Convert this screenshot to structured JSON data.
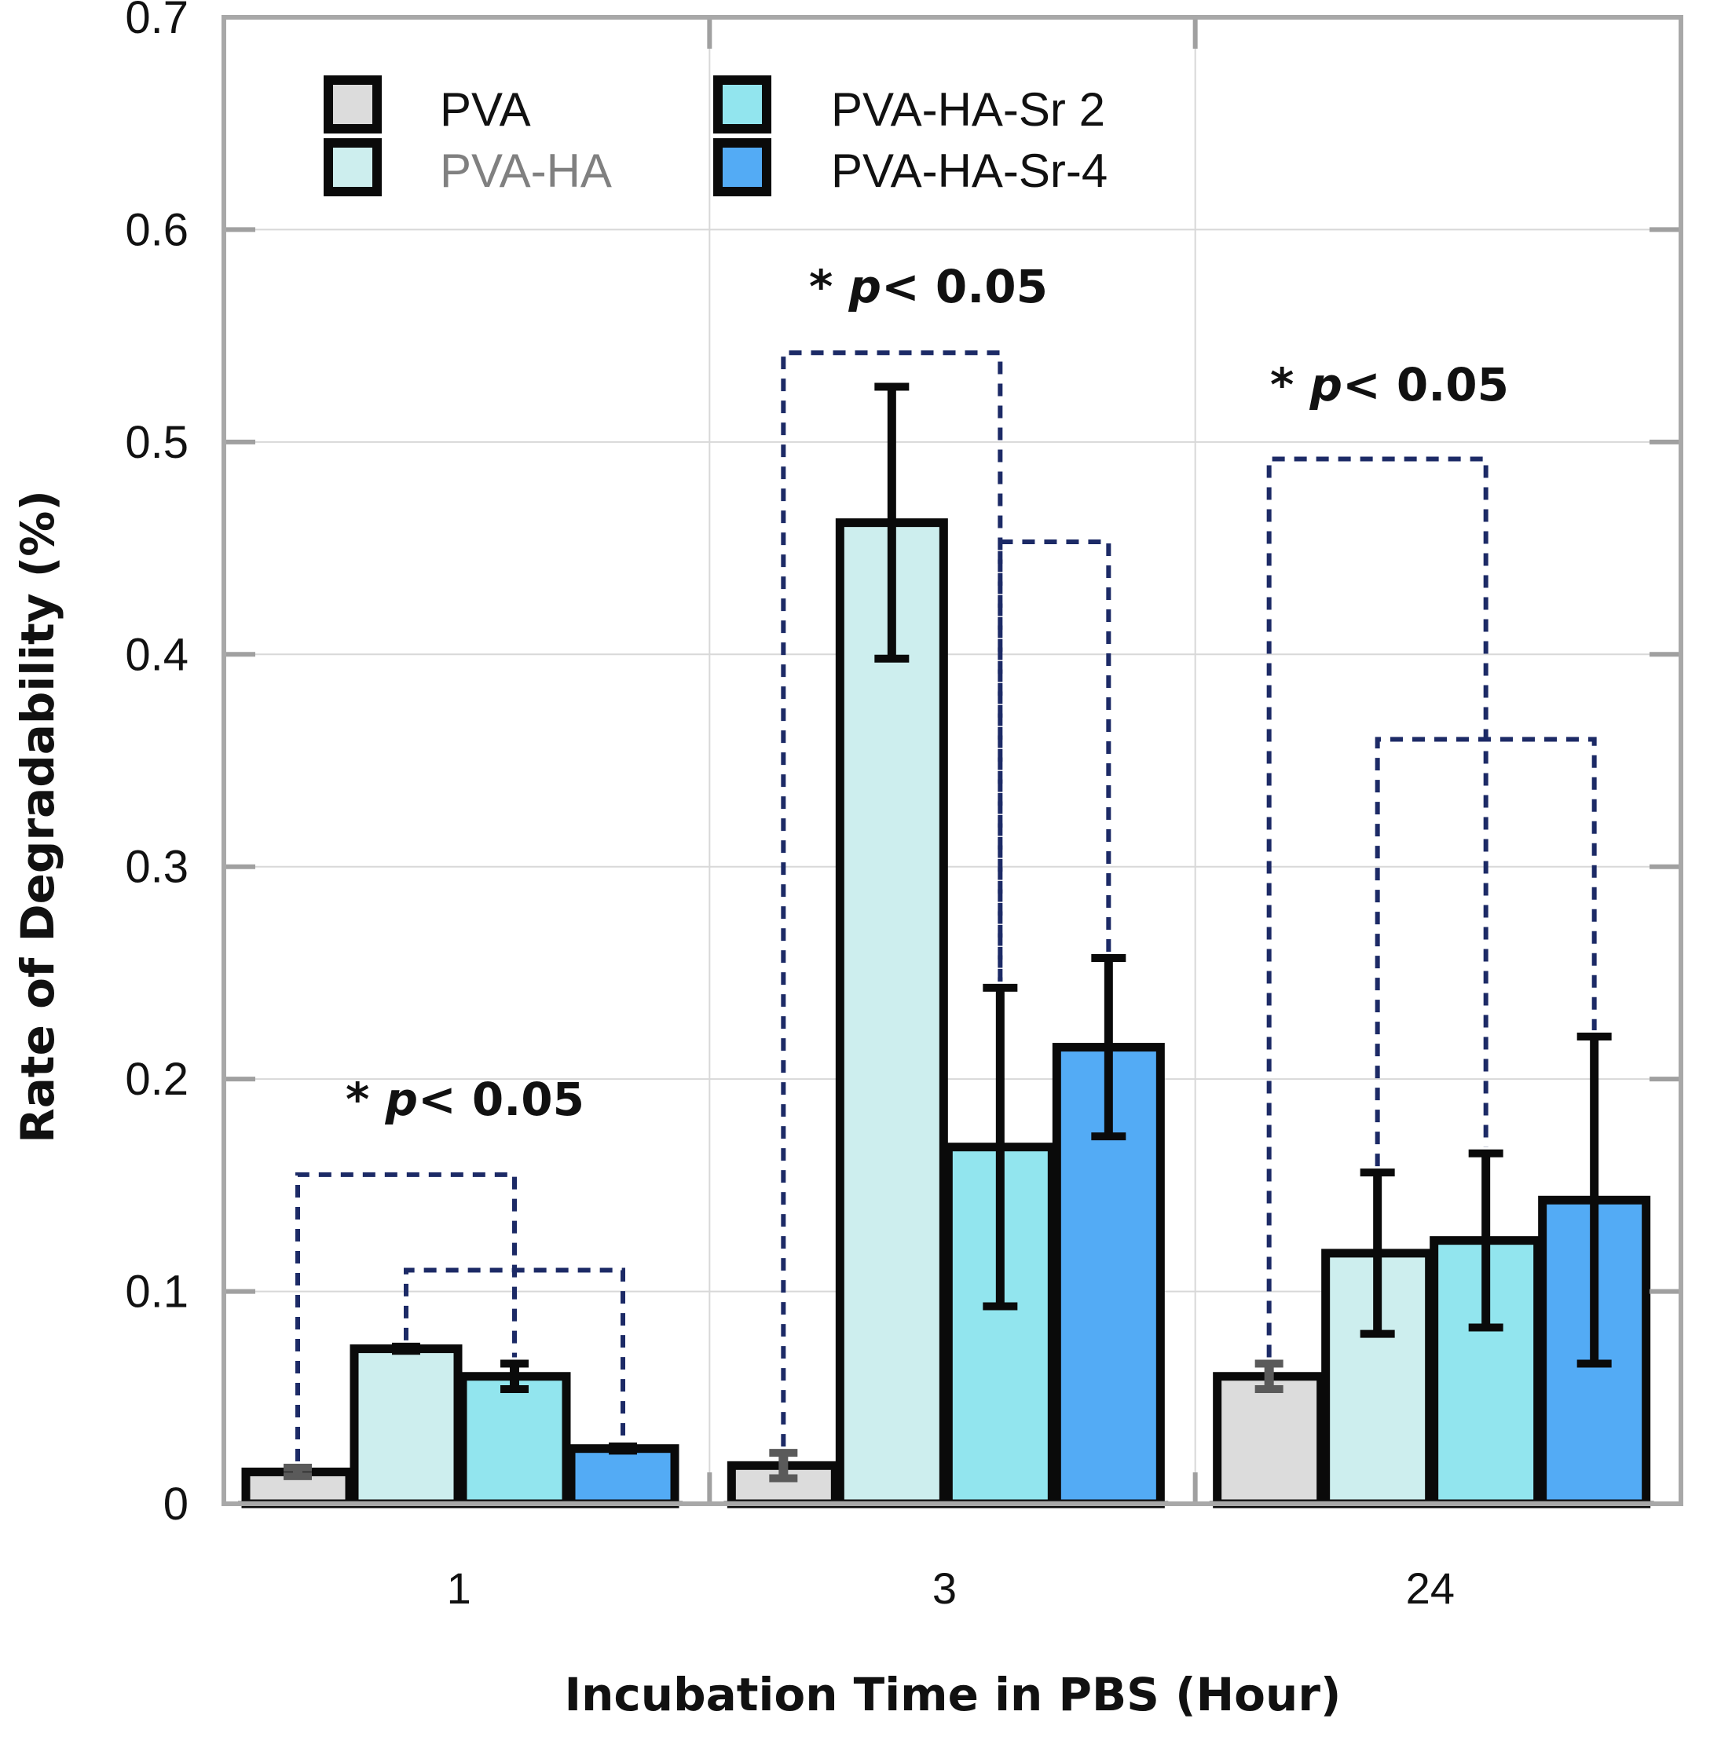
{
  "chart_data": {
    "type": "bar",
    "title": "",
    "xlabel": "Incubation Time in PBS (Hour)",
    "ylabel": "Rate of Degradability (%)",
    "ylim": [
      0,
      0.7
    ],
    "yticks": [
      "0",
      "0.1",
      "0.2",
      "0.3",
      "0.4",
      "0.5",
      "0.6",
      "0.7"
    ],
    "categories": [
      "1",
      "3",
      "24"
    ],
    "series": [
      {
        "name": "PVA",
        "color": "#dcdcdc",
        "values": [
          0.015,
          0.018,
          0.06
        ],
        "errors": [
          0.002,
          0.006,
          0.006
        ]
      },
      {
        "name": "PVA-HA",
        "color": "#cdeeee",
        "values": [
          0.073,
          0.462,
          0.118
        ],
        "errors": [
          0.001,
          0.064,
          0.038
        ]
      },
      {
        "name": "PVA-HA-Sr 2",
        "color": "#92e5ee",
        "values": [
          0.06,
          0.168,
          0.124
        ],
        "errors": [
          0.006,
          0.075,
          0.041
        ]
      },
      {
        "name": "PVA-HA-Sr-4",
        "color": "#53abf5",
        "values": [
          0.026,
          0.215,
          0.143
        ],
        "errors": [
          0.001,
          0.042,
          0.077
        ]
      }
    ],
    "legend": {
      "position": "top-left",
      "columns": 2,
      "label_colors": [
        "#111111",
        "#808080",
        "#111111",
        "#111111"
      ]
    },
    "annotations": [
      {
        "group": "1",
        "star": "* ",
        "p": "p",
        "rest": "< 0.05"
      },
      {
        "group": "3",
        "star": "* ",
        "p": "p",
        "rest": "< 0.05"
      },
      {
        "group": "24",
        "star": "* ",
        "p": "p",
        "rest": "< 0.05"
      }
    ],
    "significance_brackets": [
      {
        "group": 0,
        "bars": [
          0,
          2
        ],
        "y": 0.155
      },
      {
        "group": 0,
        "bars": [
          1,
          3
        ],
        "y": 0.11
      },
      {
        "group": 1,
        "bars": [
          0,
          2
        ],
        "y": 0.542
      },
      {
        "group": 1,
        "bars": [
          2,
          3
        ],
        "y": 0.453
      },
      {
        "group": 2,
        "bars": [
          0,
          2
        ],
        "y": 0.492
      },
      {
        "group": 2,
        "bars": [
          1,
          3
        ],
        "y": 0.36
      }
    ],
    "grid": true
  }
}
